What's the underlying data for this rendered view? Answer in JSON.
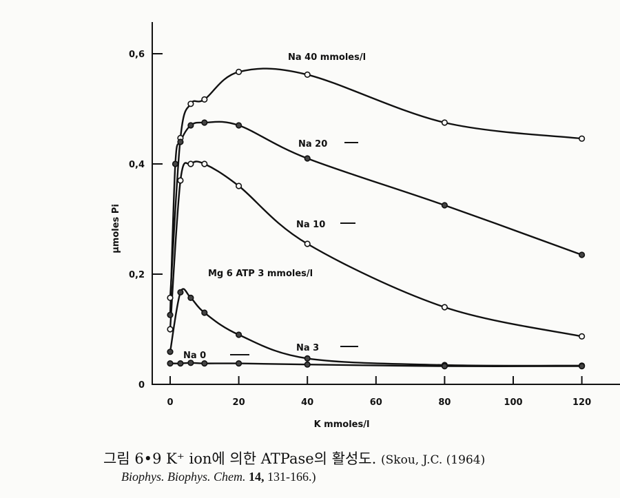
{
  "chart_data": {
    "type": "line",
    "xlabel": "K mmoles/l",
    "ylabel": "μmoles Pi",
    "xlim": [
      0,
      130
    ],
    "ylim": [
      0,
      0.65
    ],
    "x_ticks": [
      "0",
      "20",
      "40",
      "60",
      "80",
      "100",
      "120"
    ],
    "x_tick_values": [
      0,
      20,
      40,
      60,
      80,
      100,
      120
    ],
    "y_ticks": [
      "0",
      "0,2",
      "0,4",
      "0,6"
    ],
    "y_tick_values": [
      0,
      0.2,
      0.4,
      0.6
    ],
    "grid": false,
    "annotations": {
      "na40": "Na 40 mmoles/l",
      "na20": "Na 20",
      "na10": "Na 10",
      "na3": "Na 3",
      "na0": "Na 0",
      "conditions": "Mg 6 ATP 3 mmoles/l"
    },
    "series": [
      {
        "name": "Na 40 mmoles/l",
        "marker": "open",
        "x": [
          0,
          3,
          6,
          10,
          20,
          40,
          80,
          120
        ],
        "y": [
          0.157,
          0.447,
          0.509,
          0.517,
          0.567,
          0.562,
          0.475,
          0.446
        ]
      },
      {
        "name": "Na 20",
        "marker": "filled",
        "x": [
          0,
          1.5,
          3,
          6,
          10,
          20,
          40,
          80,
          120
        ],
        "y": [
          0.126,
          0.4,
          0.44,
          0.47,
          0.475,
          0.47,
          0.41,
          0.325,
          0.235
        ]
      },
      {
        "name": "Na 10",
        "marker": "open",
        "x": [
          0,
          3,
          6,
          10,
          20,
          40,
          80,
          120
        ],
        "y": [
          0.1,
          0.37,
          0.4,
          0.4,
          0.36,
          0.255,
          0.14,
          0.087
        ]
      },
      {
        "name": "Na 3",
        "marker": "filled",
        "x": [
          0,
          3,
          6,
          10,
          20,
          40,
          80,
          120
        ],
        "y": [
          0.059,
          0.167,
          0.157,
          0.13,
          0.09,
          0.047,
          0.035,
          0.034
        ]
      },
      {
        "name": "Na 0",
        "marker": "filled",
        "x": [
          0,
          3,
          6,
          10,
          20,
          40,
          80,
          120
        ],
        "y": [
          0.038,
          0.038,
          0.039,
          0.038,
          0.038,
          0.036,
          0.033,
          0.033
        ]
      }
    ]
  },
  "caption": {
    "line1": "그림 6•9  K⁺ ion에  의한  ATPase의  활성도.",
    "ref1": "(Skou, J.C. (1964)",
    "journal": "Biophys. Biophys. Chem.",
    "volume": "14,",
    "pages": "131-166.)"
  }
}
